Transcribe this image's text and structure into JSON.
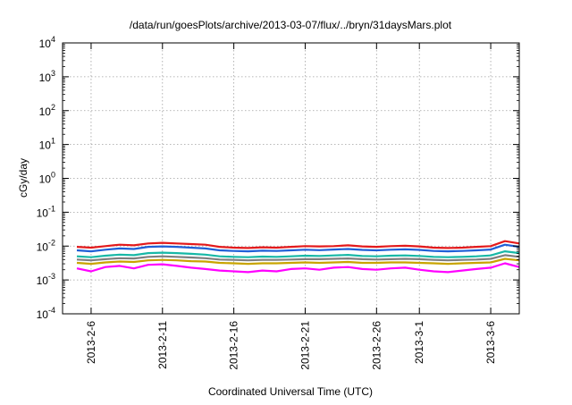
{
  "chart_data": {
    "type": "line",
    "title": "/data/run/goesPlots/archive/2013-03-07/flux/../bryn/31daysMars.plot",
    "xlabel": "Coordinated Universal Time (UTC)",
    "ylabel": "cGy/day",
    "yscale": "log",
    "ylim_exponent": [
      -4,
      4
    ],
    "y_tick_base": "10",
    "y_tick_exponents": [
      "-4",
      "-3",
      "-2",
      "-1",
      "0",
      "1",
      "2",
      "3",
      "4"
    ],
    "xlim": [
      "2013-02-04",
      "2013-03-08"
    ],
    "x_ticks": [
      {
        "date": "2013-02-06",
        "label": "2013-2-6"
      },
      {
        "date": "2013-02-11",
        "label": "2013-2-11"
      },
      {
        "date": "2013-02-16",
        "label": "2013-2-16"
      },
      {
        "date": "2013-02-21",
        "label": "2013-2-21"
      },
      {
        "date": "2013-02-26",
        "label": "2013-2-26"
      },
      {
        "date": "2013-03-01",
        "label": "2013-3-1"
      },
      {
        "date": "2013-03-06",
        "label": "2013-3-6"
      }
    ],
    "grid": true,
    "dates": [
      "2013-02-05",
      "2013-02-06",
      "2013-02-07",
      "2013-02-08",
      "2013-02-09",
      "2013-02-10",
      "2013-02-11",
      "2013-02-12",
      "2013-02-13",
      "2013-02-14",
      "2013-02-15",
      "2013-02-16",
      "2013-02-17",
      "2013-02-18",
      "2013-02-19",
      "2013-02-20",
      "2013-02-21",
      "2013-02-22",
      "2013-02-23",
      "2013-02-24",
      "2013-02-25",
      "2013-02-26",
      "2013-02-27",
      "2013-02-28",
      "2013-03-01",
      "2013-03-02",
      "2013-03-03",
      "2013-03-04",
      "2013-03-05",
      "2013-03-06",
      "2013-03-07",
      "2013-03-08"
    ],
    "series": [
      {
        "color": "#e31a1c",
        "values": [
          0.0095,
          0.009,
          0.01,
          0.011,
          0.0105,
          0.012,
          0.0125,
          0.012,
          0.0115,
          0.011,
          0.0095,
          0.009,
          0.0088,
          0.0092,
          0.009,
          0.0095,
          0.01,
          0.0098,
          0.01,
          0.0105,
          0.0098,
          0.0095,
          0.01,
          0.0102,
          0.0098,
          0.009,
          0.0088,
          0.009,
          0.0095,
          0.01,
          0.014,
          0.012
        ]
      },
      {
        "color": "#1f5fd6",
        "values": [
          0.0075,
          0.007,
          0.0078,
          0.0085,
          0.0082,
          0.0095,
          0.0098,
          0.0095,
          0.009,
          0.0085,
          0.0075,
          0.0072,
          0.007,
          0.0073,
          0.0072,
          0.0075,
          0.0078,
          0.0076,
          0.0079,
          0.0082,
          0.0077,
          0.0075,
          0.0078,
          0.008,
          0.0077,
          0.0072,
          0.007,
          0.0072,
          0.0075,
          0.0079,
          0.011,
          0.0095
        ]
      },
      {
        "color": "#17b8a6",
        "values": [
          0.005,
          0.0047,
          0.0052,
          0.0056,
          0.0054,
          0.0062,
          0.0064,
          0.0062,
          0.0059,
          0.0056,
          0.005,
          0.0048,
          0.0047,
          0.0049,
          0.0048,
          0.005,
          0.0052,
          0.0051,
          0.0053,
          0.0055,
          0.0051,
          0.005,
          0.0052,
          0.0053,
          0.0051,
          0.0048,
          0.0047,
          0.0048,
          0.005,
          0.0053,
          0.007,
          0.0062
        ]
      },
      {
        "color": "#7f7f7f",
        "values": [
          0.004,
          0.0038,
          0.0041,
          0.0044,
          0.0043,
          0.0048,
          0.005,
          0.0048,
          0.0046,
          0.0044,
          0.004,
          0.0039,
          0.0038,
          0.0039,
          0.0039,
          0.004,
          0.0041,
          0.0041,
          0.0042,
          0.0043,
          0.0041,
          0.004,
          0.0041,
          0.0042,
          0.0041,
          0.0039,
          0.0038,
          0.0039,
          0.004,
          0.0042,
          0.0054,
          0.0048
        ]
      },
      {
        "color": "#c8a400",
        "values": [
          0.0032,
          0.003,
          0.0033,
          0.0035,
          0.0034,
          0.0038,
          0.0039,
          0.0038,
          0.0036,
          0.0035,
          0.0032,
          0.0031,
          0.003,
          0.0031,
          0.0031,
          0.0032,
          0.0033,
          0.0032,
          0.0033,
          0.0034,
          0.0032,
          0.0032,
          0.0033,
          0.0033,
          0.0032,
          0.0031,
          0.003,
          0.0031,
          0.0032,
          0.0033,
          0.0042,
          0.0038
        ]
      },
      {
        "color": "#ff00ff",
        "values": [
          0.0022,
          0.0018,
          0.0024,
          0.0026,
          0.0022,
          0.0028,
          0.0029,
          0.0026,
          0.0023,
          0.0021,
          0.0019,
          0.0018,
          0.0017,
          0.0019,
          0.0018,
          0.0021,
          0.0022,
          0.002,
          0.0023,
          0.0024,
          0.0021,
          0.002,
          0.0022,
          0.0023,
          0.002,
          0.0018,
          0.0017,
          0.0019,
          0.0021,
          0.0023,
          0.0031,
          0.0024
        ]
      }
    ]
  }
}
